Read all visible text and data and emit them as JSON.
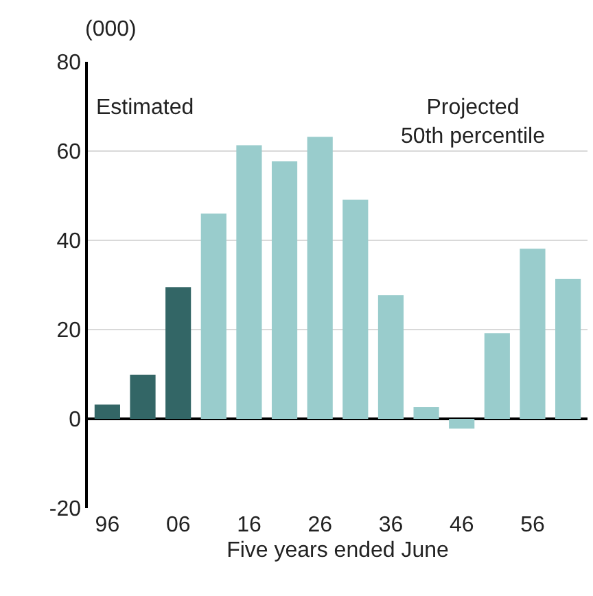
{
  "chart_data": {
    "type": "bar",
    "ylabel": "(000)",
    "xlabel": "Five years ended June",
    "categories": [
      "96",
      null,
      "06",
      null,
      "16",
      null,
      "26",
      null,
      "36",
      null,
      "46",
      null,
      "56",
      null
    ],
    "values": [
      3.2,
      9.9,
      29.5,
      46,
      61.3,
      57.7,
      63.2,
      49.1,
      27.7,
      2.6,
      -2.2,
      19.2,
      38.1,
      31.4
    ],
    "colors": [
      "#336666",
      "#336666",
      "#336666",
      "#99cccc",
      "#99cccc",
      "#99cccc",
      "#99cccc",
      "#99cccc",
      "#99cccc",
      "#99cccc",
      "#99cccc",
      "#99cccc",
      "#99cccc",
      "#99cccc"
    ],
    "ylim": [
      -20,
      80
    ],
    "yticks": [
      -20,
      0,
      20,
      40,
      60,
      80
    ],
    "grid": "y",
    "annotations": [
      "Estimated",
      "Projected\n50th percentile"
    ]
  }
}
